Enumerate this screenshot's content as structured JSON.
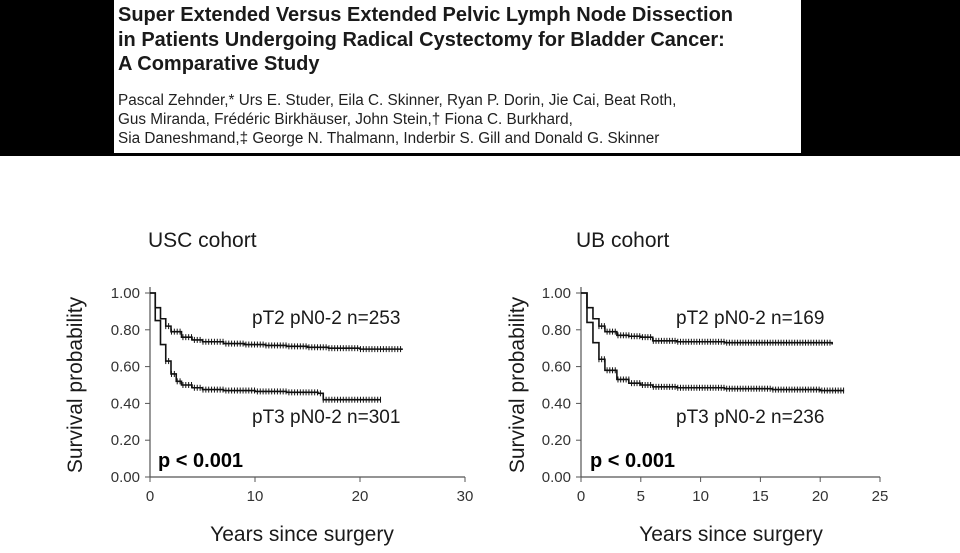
{
  "paper": {
    "title_lines": [
      "Super Extended Versus Extended Pelvic Lymph Node Dissection",
      "in Patients Undergoing Radical Cystectomy for Bladder Cancer:",
      "A Comparative Study"
    ],
    "author_lines": [
      "Pascal Zehnder,* Urs E. Studer, Eila C. Skinner, Ryan P. Dorin, Jie Cai, Beat Roth,",
      "Gus Miranda, Frédéric Birkhäuser, John Stein,† Fiona C. Burkhard,",
      "Sia Daneshmand,‡ George N. Thalmann, Inderbir S. Gill and Donald G. Skinner"
    ]
  },
  "colors": {
    "bars": "#000000",
    "curve": "#111111",
    "axis": "#555555"
  },
  "chart_data": [
    {
      "type": "line",
      "title": "USC cohort",
      "xlabel": "Years since surgery",
      "ylabel": "Survival probability",
      "xlim": [
        0,
        30
      ],
      "ylim": [
        0,
        1
      ],
      "x_ticks": [
        "0",
        "10",
        "20",
        "30"
      ],
      "y_ticks": [
        "0.00",
        "0.20",
        "0.40",
        "0.60",
        "0.80",
        "1.00"
      ],
      "annotation": "p < 0.001",
      "series": [
        {
          "name": "pT2 pN0-2 n=253",
          "points": [
            [
              0,
              1.0
            ],
            [
              0.5,
              0.92
            ],
            [
              1,
              0.86
            ],
            [
              1.5,
              0.82
            ],
            [
              2,
              0.79
            ],
            [
              3,
              0.76
            ],
            [
              4,
              0.745
            ],
            [
              5,
              0.735
            ],
            [
              7,
              0.725
            ],
            [
              9,
              0.72
            ],
            [
              11,
              0.715
            ],
            [
              13,
              0.71
            ],
            [
              15,
              0.705
            ],
            [
              17,
              0.7
            ],
            [
              20,
              0.695
            ],
            [
              24,
              0.69
            ]
          ]
        },
        {
          "name": "pT3 pN0-2 n=301",
          "points": [
            [
              0,
              1.0
            ],
            [
              0.5,
              0.85
            ],
            [
              1,
              0.72
            ],
            [
              1.5,
              0.63
            ],
            [
              2,
              0.56
            ],
            [
              2.5,
              0.52
            ],
            [
              3,
              0.5
            ],
            [
              4,
              0.485
            ],
            [
              5,
              0.475
            ],
            [
              7,
              0.47
            ],
            [
              10,
              0.465
            ],
            [
              13,
              0.46
            ],
            [
              16,
              0.455
            ],
            [
              16.5,
              0.42
            ],
            [
              22,
              0.42
            ]
          ]
        }
      ]
    },
    {
      "type": "line",
      "title": "UB cohort",
      "xlabel": "Years since surgery",
      "ylabel": "Survival probability",
      "xlim": [
        0,
        25
      ],
      "ylim": [
        0,
        1
      ],
      "x_ticks": [
        "0",
        "5",
        "10",
        "15",
        "20",
        "25"
      ],
      "y_ticks": [
        "0.00",
        "0.20",
        "0.40",
        "0.60",
        "0.80",
        "1.00"
      ],
      "annotation": "p < 0.001",
      "series": [
        {
          "name": "pT2 pN0-2 n=169",
          "points": [
            [
              0,
              1.0
            ],
            [
              0.5,
              0.92
            ],
            [
              1,
              0.86
            ],
            [
              1.5,
              0.82
            ],
            [
              2,
              0.79
            ],
            [
              3,
              0.77
            ],
            [
              4,
              0.765
            ],
            [
              5,
              0.76
            ],
            [
              6,
              0.74
            ],
            [
              8,
              0.735
            ],
            [
              12,
              0.73
            ],
            [
              16,
              0.73
            ],
            [
              21,
              0.72
            ]
          ]
        },
        {
          "name": "pT3 pN0-2 n=236",
          "points": [
            [
              0,
              1.0
            ],
            [
              0.5,
              0.84
            ],
            [
              1,
              0.73
            ],
            [
              1.5,
              0.64
            ],
            [
              2,
              0.58
            ],
            [
              3,
              0.53
            ],
            [
              4,
              0.51
            ],
            [
              5,
              0.5
            ],
            [
              6,
              0.49
            ],
            [
              8,
              0.485
            ],
            [
              12,
              0.48
            ],
            [
              16,
              0.475
            ],
            [
              20,
              0.47
            ],
            [
              22,
              0.47
            ]
          ]
        }
      ]
    }
  ]
}
